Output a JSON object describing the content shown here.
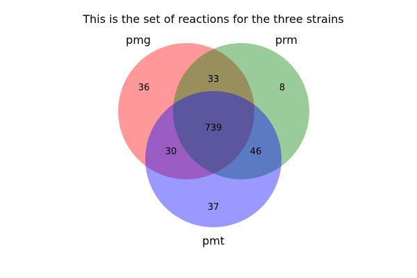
{
  "title": "This is the set of reactions for the three strains",
  "sets": [
    {
      "name": "pmg",
      "color": "#ff0000"
    },
    {
      "name": "prm",
      "color": "#008000"
    },
    {
      "name": "pmt",
      "color": "#0000ff"
    }
  ],
  "regions": {
    "pmg_only": "36",
    "prm_only": "8",
    "pmg_prm": "33",
    "all_three": "739",
    "pmg_pmt": "30",
    "prm_pmt": "46",
    "pmt_only": "37"
  },
  "style": {
    "circle_opacity": 0.4
  }
}
